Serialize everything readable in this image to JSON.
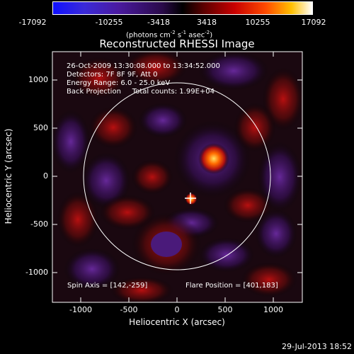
{
  "colorbar": {
    "ticks": [
      "-17092",
      "-10255",
      "-3418",
      "3418",
      "10255",
      "17092"
    ],
    "unit_main": "(photons cm",
    "unit_sup1": "-2",
    "unit_mid": " s",
    "unit_sup2": "-1",
    "unit_mid2": " asec",
    "unit_sup3": "-2",
    "unit_end": ")"
  },
  "plot": {
    "title": "Reconstructed RHESSI Image",
    "info_lines": [
      "26-Oct-2009 13:30:08.000 to 13:34:52.000",
      "Detectors: 7F 8F 9F, Att 0",
      "Energy Range: 6.0 - 25.0 keV",
      "Back Projection     Total counts: 1.99E+04"
    ],
    "spin_axis": "Spin Axis = [142,-259]",
    "flare_position": "Flare Position = [401,183]",
    "xlabel": "Heliocentric X (arcsec)",
    "ylabel": "Heliocentric Y (arcsec)",
    "x_ticks": [
      "-1000",
      "-500",
      "0",
      "500",
      "1000"
    ],
    "y_ticks": [
      "1000",
      "500",
      "0",
      "-500",
      "-1000"
    ]
  },
  "footer": {
    "timestamp": "29-Jul-2013 18:52"
  },
  "colors": {
    "background": "#000000",
    "text": "#ffffff",
    "colorbar_low": "#0000ff",
    "colorbar_mid": "#000000",
    "colorbar_high": "#ffffff"
  }
}
